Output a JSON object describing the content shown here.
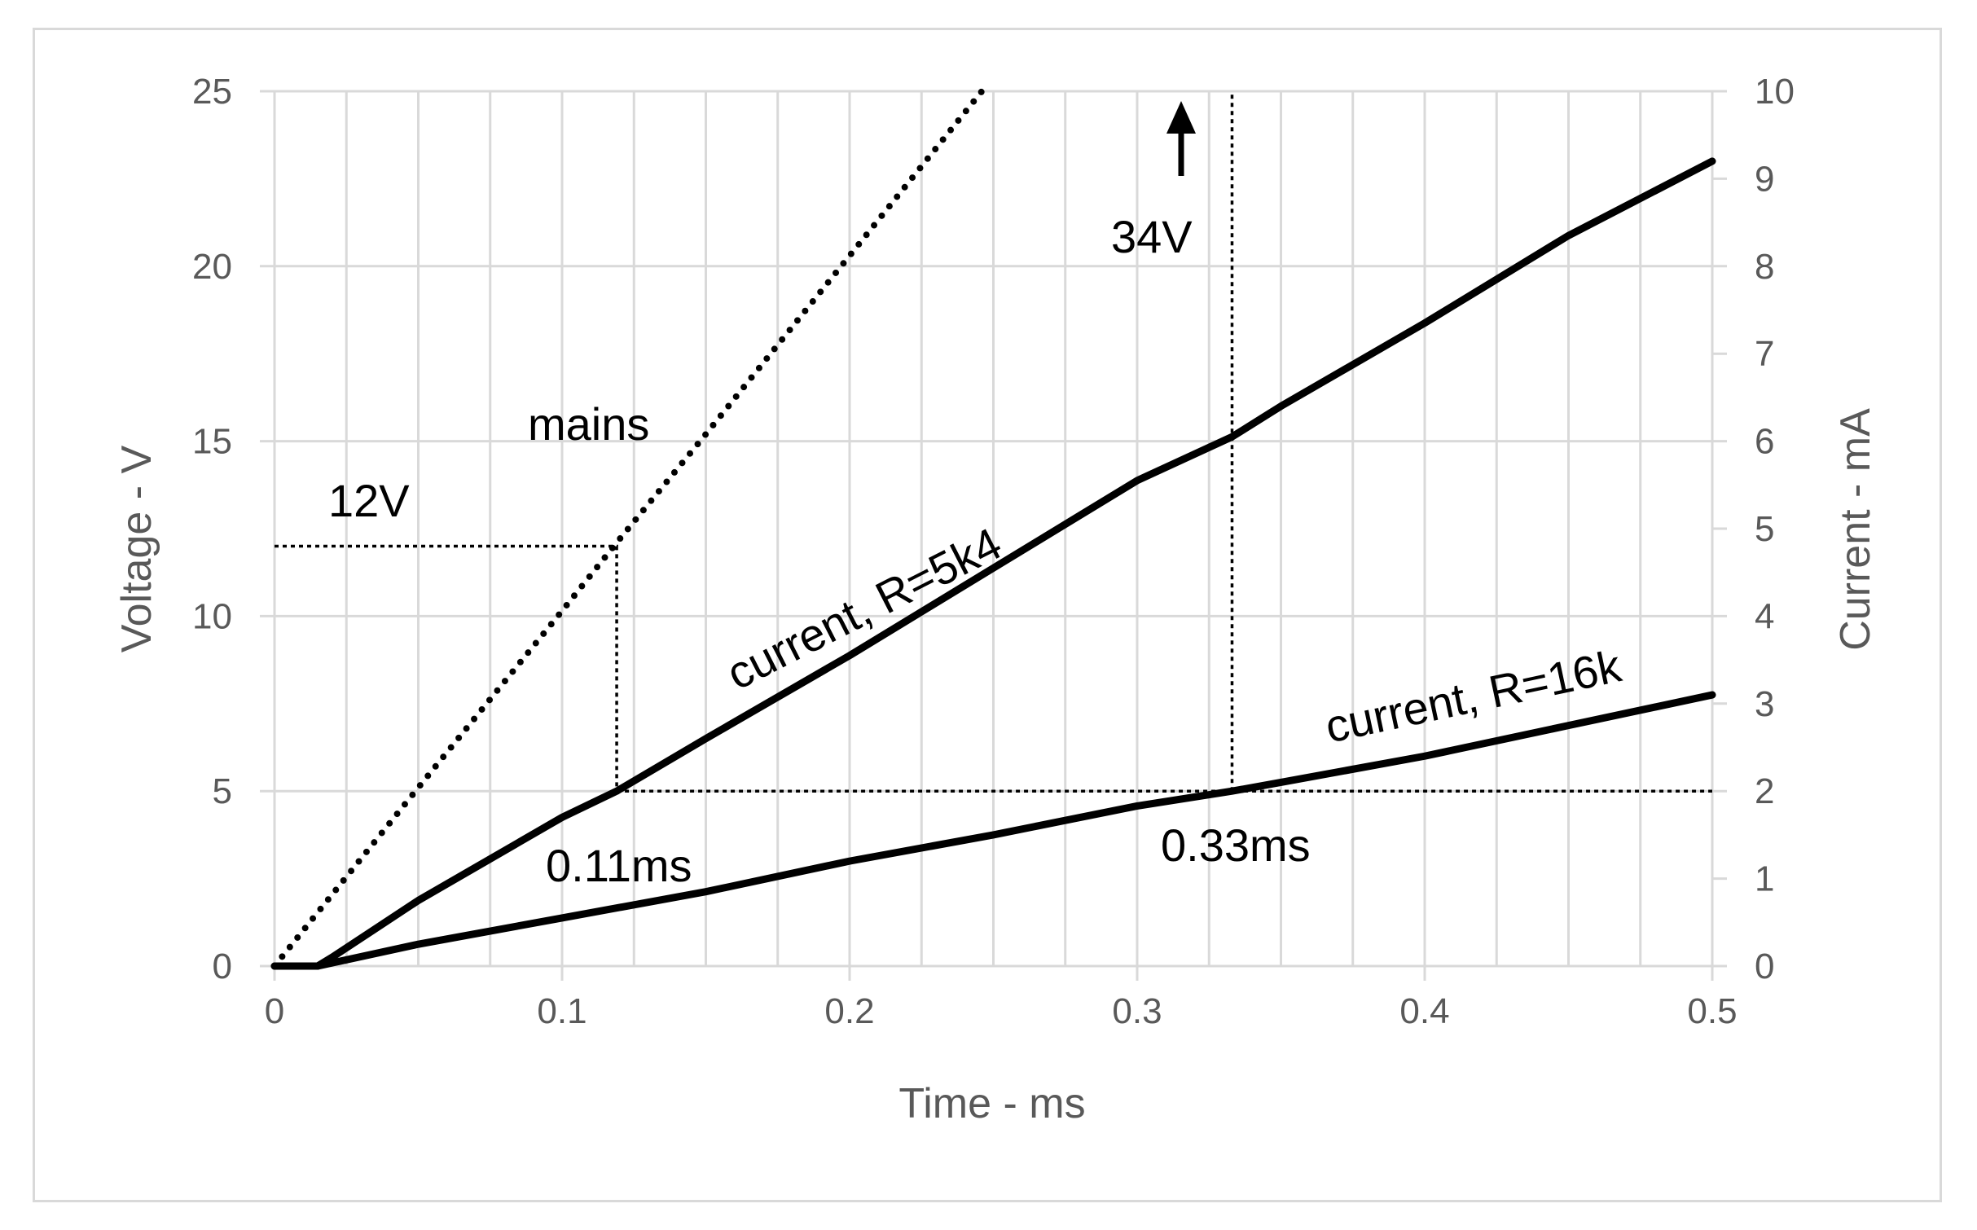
{
  "chart_data": {
    "type": "line",
    "title": "",
    "xlabel": "Time - ms",
    "ylabel": "Voltage - V",
    "y2label": "Current - mA",
    "xlim": [
      0,
      0.5
    ],
    "ylim": [
      0,
      25
    ],
    "y2lim": [
      0,
      10
    ],
    "x_ticks": [
      0,
      0.1,
      0.2,
      0.3,
      0.4,
      0.5
    ],
    "y_ticks": [
      0,
      5,
      10,
      15,
      20,
      25
    ],
    "y2_ticks": [
      0,
      1,
      2,
      3,
      4,
      5,
      6,
      7,
      8,
      9,
      10
    ],
    "grid": true,
    "series": [
      {
        "name": "mains",
        "axis": "left",
        "style": "dotted",
        "x": [
          0,
          0.05,
          0.1,
          0.119,
          0.15,
          0.2,
          0.246
        ],
        "y": [
          0,
          5.1,
          10.15,
          12.1,
          15.2,
          20.3,
          25
        ]
      },
      {
        "name": "current, R=5k4",
        "axis": "right",
        "style": "solid",
        "x": [
          0,
          0.015,
          0.02,
          0.05,
          0.1,
          0.119,
          0.15,
          0.2,
          0.25,
          0.3,
          0.333,
          0.35,
          0.4,
          0.45,
          0.5
        ],
        "y": [
          0,
          0,
          0.1,
          0.75,
          1.7,
          2.0,
          2.6,
          3.55,
          4.55,
          5.55,
          6.05,
          6.4,
          7.35,
          8.35,
          9.2
        ]
      },
      {
        "name": "current, R=16k",
        "axis": "right",
        "style": "solid",
        "x": [
          0,
          0.015,
          0.05,
          0.1,
          0.15,
          0.2,
          0.25,
          0.3,
          0.333,
          0.35,
          0.4,
          0.45,
          0.5
        ],
        "y": [
          0,
          0,
          0.25,
          0.55,
          0.85,
          1.2,
          1.5,
          1.83,
          2.0,
          2.1,
          2.4,
          2.75,
          3.1
        ]
      }
    ],
    "reference_lines": [
      {
        "style": "dotted",
        "points": [
          [
            0,
            12
          ],
          [
            0.119,
            12
          ],
          [
            0.119,
            5
          ]
        ]
      },
      {
        "style": "dotted",
        "points": [
          [
            0.119,
            5
          ],
          [
            0.5,
            5
          ]
        ]
      },
      {
        "style": "dotted",
        "points": [
          [
            0.333,
            5
          ],
          [
            0.333,
            25
          ]
        ]
      }
    ],
    "annotations": {
      "mains": "mains",
      "v12": "12V",
      "v34": "34V",
      "t011": "0.11ms",
      "t033": "0.33ms",
      "r5k4": "current, R=5k4",
      "r16k": "current, R=16k"
    },
    "colors": {
      "lines": "#000000",
      "grid": "#d9d9d9",
      "axis_text": "#595959"
    }
  }
}
